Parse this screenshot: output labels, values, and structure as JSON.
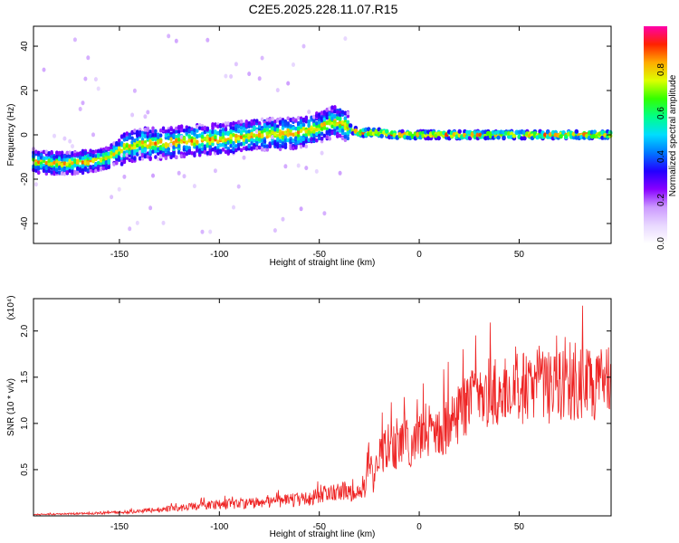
{
  "title": "C2E5.2025.228.11.07.R15",
  "colors": {
    "snr_line": "#ee2222",
    "colormap": [
      "#ffffff",
      "#e8d8ff",
      "#cc99ff",
      "#8800ff",
      "#2200ff",
      "#0077ff",
      "#00ddff",
      "#00ff88",
      "#33ff00",
      "#ddff00",
      "#ffaa00",
      "#ff2200",
      "#ff00aa"
    ]
  },
  "chart_data": [
    {
      "type": "heatmap",
      "ylabel": "Frequency (Hz)",
      "xlabel": "Height of straight line (km)",
      "xlim": [
        -193,
        96
      ],
      "ylim": [
        -49,
        49
      ],
      "x_ticks": [
        -150,
        -100,
        -50,
        0,
        50
      ],
      "y_ticks": [
        -40,
        -20,
        0,
        20,
        40
      ],
      "colorbar": {
        "label": "Normalized spectral amplitude",
        "range": [
          0,
          1
        ],
        "ticks": [
          "0.0",
          "0.2",
          "0.4",
          "0.6",
          "0.8"
        ]
      },
      "ridge": {
        "x": [
          -193,
          -180,
          -165,
          -155,
          -150,
          -140,
          -130,
          -120,
          -100,
          -80,
          -60,
          -50,
          -42,
          -38,
          -35,
          -30,
          -20,
          -10,
          0,
          10,
          20,
          40,
          60,
          80,
          96
        ],
        "freq": [
          -12,
          -13,
          -12,
          -10,
          -7,
          -4,
          -4,
          -3,
          -2,
          0,
          1,
          3,
          6,
          5,
          3,
          1,
          1,
          0,
          0,
          0,
          0,
          0,
          0,
          0,
          0
        ]
      }
    },
    {
      "type": "line",
      "ylabel": "SNR (10 * v/v)",
      "multiplier": "(x10⁴)",
      "xlabel": "Height of straight line (km)",
      "xlim": [
        -193,
        96
      ],
      "ylim": [
        0,
        2.35
      ],
      "x_ticks": [
        -150,
        -100,
        -50,
        0,
        50
      ],
      "y_ticks": [
        0.5,
        1.0,
        1.5,
        2.0
      ],
      "y_tick_labels": [
        "0.5",
        "1.0",
        "1.5",
        "2.0"
      ],
      "envelope": {
        "x": [
          -193,
          -160,
          -140,
          -120,
          -100,
          -80,
          -60,
          -50,
          -45,
          -40,
          -35,
          -30,
          -27,
          -25,
          -23,
          -20,
          -15,
          -10,
          -5,
          0,
          5,
          10,
          15,
          20,
          25,
          30,
          40,
          50,
          60,
          70,
          80,
          90,
          96
        ],
        "y": [
          0.02,
          0.04,
          0.07,
          0.12,
          0.18,
          0.2,
          0.25,
          0.3,
          0.35,
          0.4,
          0.38,
          0.35,
          0.5,
          0.95,
          0.5,
          0.85,
          0.95,
          1.0,
          1.05,
          1.1,
          1.15,
          1.2,
          1.3,
          1.45,
          1.6,
          1.7,
          1.75,
          1.78,
          1.8,
          1.8,
          1.82,
          1.85,
          1.8
        ]
      }
    }
  ]
}
